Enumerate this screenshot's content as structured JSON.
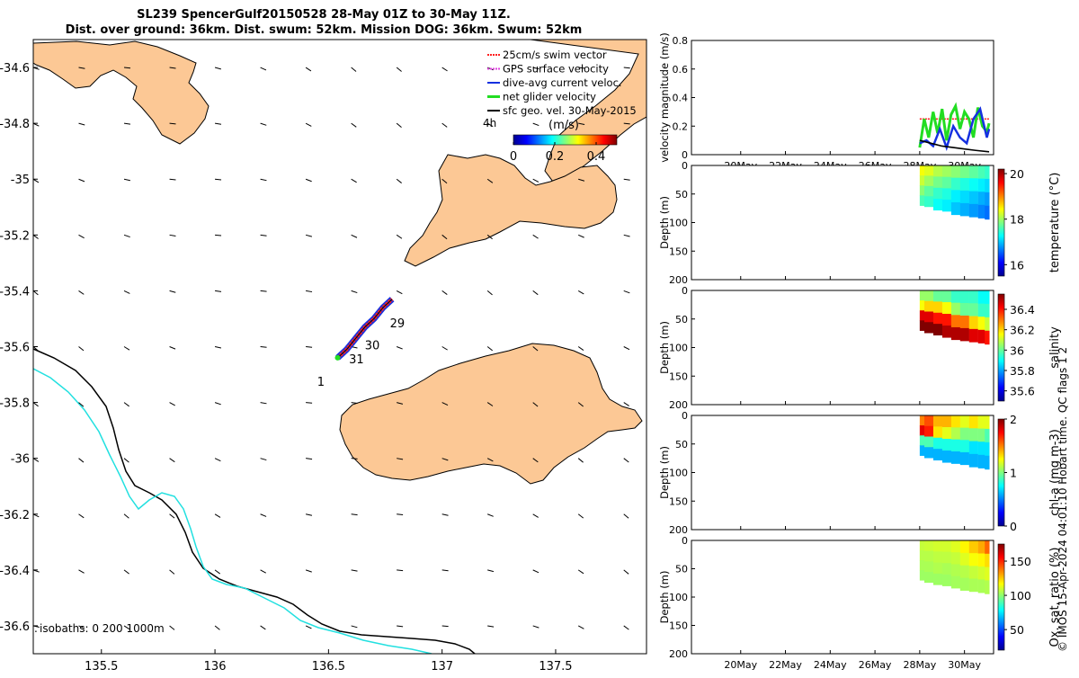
{
  "title_line1": "SL239 SpencerGulf20150528 28-May 01Z to 30-May 11Z.",
  "title_line2": "Dist. over ground: 36km. Dist. swum: 52km. Mission DOG: 36km. Swum: 52km",
  "credit": "© IMOS 15-Apr-2024 04:01:10 Hobart time. QC flags 1  2",
  "colors": {
    "land": "#fcc895",
    "isobath200": "#000000",
    "isobath1000": "#22e0e0",
    "swim": "#ff2020",
    "gps": "#e040e0",
    "dive": "#1530e0",
    "net": "#22dd22",
    "sfc": "#000000"
  },
  "chart_data": [
    {
      "type": "map",
      "xlim": [
        135.2,
        137.9
      ],
      "ylim": [
        -36.7,
        -34.5
      ],
      "xticks": [
        "135.5",
        "136",
        "136.5",
        "137",
        "137.5"
      ],
      "xtick_values": [
        135.5,
        136,
        136.5,
        137,
        137.5
      ],
      "yticks": [
        "-34.6",
        "-34.8",
        "-35",
        "-35.2",
        "-35.4",
        "-35.6",
        "-35.8",
        "-36",
        "-36.2",
        "-36.4",
        "-36.6"
      ],
      "ytick_values": [
        -34.6,
        -34.8,
        -35,
        -35.2,
        -35.4,
        -35.6,
        -35.8,
        -36,
        -36.2,
        -36.4,
        -36.6
      ],
      "legend": [
        {
          "label": "25cm/s swim vector",
          "key": "swim"
        },
        {
          "label": "GPS surface velocity",
          "key": "gps"
        },
        {
          "label": "dive-avg current veloc.",
          "key": "dive"
        },
        {
          "label": "net glider velocity",
          "key": "net"
        },
        {
          "label": "sfc geo. vel. 30-May-2015",
          "key": "sfc"
        }
      ],
      "legend_position": "top-right",
      "colorbar": {
        "label": "(m/s)",
        "corner_label": "4h",
        "ticks": [
          "0",
          "0.2",
          "0.4"
        ],
        "tick_values": [
          0,
          0.2,
          0.4
        ],
        "range": [
          0,
          0.5
        ]
      },
      "isobath_label": "isobaths: 0   200  1000m",
      "track_labels": [
        {
          "text": "29",
          "lon": 136.77,
          "lat": -35.53
        },
        {
          "text": "30",
          "lon": 136.66,
          "lat": -35.61
        },
        {
          "text": "31",
          "lon": 136.59,
          "lat": -35.66
        },
        {
          "text": "1",
          "lon": 136.45,
          "lat": -35.74
        }
      ],
      "track": [
        [
          136.54,
          -35.64
        ],
        [
          136.58,
          -35.61
        ],
        [
          136.62,
          -35.57
        ],
        [
          136.66,
          -35.53
        ],
        [
          136.7,
          -35.5
        ],
        [
          136.74,
          -35.46
        ],
        [
          136.78,
          -35.43
        ]
      ]
    },
    {
      "type": "line",
      "ylabel": "velocity magnitude (m/s)",
      "ylim": [
        0,
        0.8
      ],
      "yticks": [
        "0",
        "0.2",
        "0.4",
        "0.6",
        "0.8"
      ],
      "ytick_values": [
        0,
        0.2,
        0.4,
        0.6,
        0.8
      ],
      "xlim": [
        17.8,
        31.3
      ],
      "xticks": [
        "20May",
        "22May",
        "24May",
        "26May",
        "28May",
        "30May"
      ],
      "xtick_values": [
        20,
        22,
        24,
        26,
        28,
        30
      ],
      "series": [
        {
          "color": "swim",
          "x": [
            28.0,
            28.4,
            28.8,
            29.2,
            29.6,
            30.0,
            30.4,
            30.8,
            31.1
          ],
          "y": [
            0.25,
            0.25,
            0.25,
            0.25,
            0.25,
            0.25,
            0.25,
            0.25,
            0.25
          ]
        },
        {
          "color": "net",
          "x": [
            28.0,
            28.2,
            28.4,
            28.6,
            28.8,
            29.0,
            29.2,
            29.4,
            29.6,
            29.8,
            30.0,
            30.2,
            30.4,
            30.6,
            30.8,
            31.0,
            31.1
          ],
          "y": [
            0.05,
            0.25,
            0.12,
            0.3,
            0.15,
            0.32,
            0.1,
            0.28,
            0.34,
            0.18,
            0.3,
            0.25,
            0.12,
            0.33,
            0.2,
            0.16,
            0.22
          ]
        },
        {
          "color": "dive",
          "x": [
            28.0,
            28.3,
            28.6,
            28.9,
            29.2,
            29.5,
            29.8,
            30.1,
            30.4,
            30.7,
            31.0,
            31.1
          ],
          "y": [
            0.08,
            0.1,
            0.06,
            0.18,
            0.05,
            0.2,
            0.12,
            0.08,
            0.25,
            0.32,
            0.12,
            0.18
          ]
        },
        {
          "color": "sfc",
          "x": [
            28.0,
            28.5,
            29.0,
            29.5,
            30.0,
            30.5,
            31.1
          ],
          "y": [
            0.1,
            0.08,
            0.06,
            0.05,
            0.04,
            0.03,
            0.02
          ]
        }
      ]
    },
    {
      "type": "heatmap",
      "ylabel": "Depth (m)",
      "cblabel": "temperature (°C)",
      "ylim": [
        0,
        200
      ],
      "yticks": [
        "0",
        "50",
        "100",
        "150",
        "200"
      ],
      "ytick_values": [
        0,
        50,
        100,
        150,
        200
      ],
      "clim": [
        15.5,
        20.2
      ],
      "cbticks": [
        "16",
        "18",
        "20"
      ],
      "cbtick_values": [
        16,
        18,
        20
      ],
      "xlim": [
        17.8,
        31.3
      ],
      "x": [
        28.0,
        28.4,
        28.8,
        29.2,
        29.6,
        30.0,
        30.4,
        30.8,
        31.1
      ],
      "max_depth": [
        70,
        72,
        78,
        80,
        86,
        88,
        90,
        92,
        94
      ],
      "values": [
        [
          18.4,
          18.2,
          17.9,
          17.6
        ],
        [
          18.3,
          18.0,
          17.7,
          17.5
        ],
        [
          18.1,
          17.8,
          17.5,
          17.3
        ],
        [
          18.0,
          17.7,
          17.4,
          17.2
        ],
        [
          17.9,
          17.5,
          17.2,
          17.0
        ],
        [
          17.8,
          17.4,
          17.1,
          16.9
        ],
        [
          17.7,
          17.3,
          17.0,
          16.8
        ],
        [
          17.6,
          17.2,
          16.9,
          16.7
        ],
        [
          17.5,
          17.1,
          16.8,
          16.6
        ]
      ]
    },
    {
      "type": "heatmap",
      "ylabel": "Depth (m)",
      "cblabel": "salinity",
      "ylim": [
        0,
        200
      ],
      "yticks": [
        "0",
        "50",
        "100",
        "150",
        "200"
      ],
      "ytick_values": [
        0,
        50,
        100,
        150,
        200
      ],
      "clim": [
        35.5,
        36.55
      ],
      "cbticks": [
        "35.6",
        "35.8",
        "36",
        "36.2",
        "36.4"
      ],
      "cbtick_values": [
        35.6,
        35.8,
        36,
        36.2,
        36.4
      ],
      "xlim": [
        17.8,
        31.3
      ],
      "x": [
        28.0,
        28.4,
        28.8,
        29.2,
        29.6,
        30.0,
        30.4,
        30.8,
        31.1
      ],
      "max_depth": [
        70,
        74,
        78,
        82,
        86,
        88,
        90,
        92,
        94
      ],
      "values": [
        [
          36.05,
          36.15,
          36.45,
          36.55
        ],
        [
          36.05,
          36.2,
          36.45,
          36.55
        ],
        [
          36.0,
          36.2,
          36.4,
          36.55
        ],
        [
          36.0,
          36.15,
          36.4,
          36.5
        ],
        [
          35.95,
          36.05,
          36.3,
          36.5
        ],
        [
          35.95,
          36.0,
          36.3,
          36.5
        ],
        [
          35.95,
          36.0,
          36.2,
          36.45
        ],
        [
          35.9,
          35.95,
          36.15,
          36.45
        ],
        [
          35.9,
          35.95,
          36.1,
          36.4
        ]
      ]
    },
    {
      "type": "heatmap",
      "ylabel": "Depth (m)",
      "cblabel": "chl-a (mg m-3)",
      "ylim": [
        0,
        200
      ],
      "yticks": [
        "0",
        "50",
        "100",
        "150",
        "200"
      ],
      "ytick_values": [
        0,
        50,
        100,
        150,
        200
      ],
      "clim": [
        0,
        2
      ],
      "cbticks": [
        "0",
        "1",
        "2"
      ],
      "cbtick_values": [
        0,
        1,
        2
      ],
      "xlim": [
        17.8,
        31.3
      ],
      "x": [
        28.0,
        28.4,
        28.8,
        29.2,
        29.6,
        30.0,
        30.4,
        30.8,
        31.1
      ],
      "max_depth": [
        70,
        74,
        78,
        82,
        84,
        86,
        90,
        92,
        94
      ],
      "values": [
        [
          1.5,
          1.8,
          0.9,
          0.6
        ],
        [
          1.6,
          1.7,
          0.9,
          0.6
        ],
        [
          1.4,
          1.3,
          0.8,
          0.6
        ],
        [
          1.4,
          1.2,
          0.8,
          0.6
        ],
        [
          1.3,
          1.1,
          0.8,
          0.6
        ],
        [
          1.2,
          1.0,
          0.8,
          0.6
        ],
        [
          1.3,
          1.0,
          0.7,
          0.6
        ],
        [
          1.2,
          1.0,
          0.7,
          0.6
        ],
        [
          1.2,
          0.9,
          0.7,
          0.6
        ]
      ]
    },
    {
      "type": "heatmap",
      "ylabel": "Depth (m)",
      "cblabel": "Ox. sat. ratio (%)",
      "ylim": [
        0,
        200
      ],
      "yticks": [
        "0",
        "50",
        "100",
        "150",
        "200"
      ],
      "ytick_values": [
        0,
        50,
        100,
        150,
        200
      ],
      "clim": [
        20,
        175
      ],
      "cbticks": [
        "50",
        "100",
        "150"
      ],
      "cbtick_values": [
        50,
        100,
        150
      ],
      "xlim": [
        17.8,
        31.3
      ],
      "x": [
        28.0,
        28.4,
        28.8,
        29.2,
        29.6,
        30.0,
        30.4,
        30.8,
        31.1
      ],
      "max_depth": [
        70,
        74,
        78,
        80,
        84,
        88,
        90,
        92,
        94
      ],
      "values": [
        [
          108,
          106,
          104,
          102
        ],
        [
          109,
          106,
          104,
          102
        ],
        [
          110,
          107,
          105,
          102
        ],
        [
          110,
          107,
          104,
          102
        ],
        [
          112,
          108,
          105,
          103
        ],
        [
          118,
          112,
          106,
          103
        ],
        [
          125,
          116,
          108,
          104
        ],
        [
          130,
          118,
          110,
          104
        ],
        [
          140,
          122,
          112,
          105
        ]
      ],
      "xticks": [
        "20May",
        "22May",
        "24May",
        "26May",
        "28May",
        "30May"
      ],
      "xtick_values": [
        20,
        22,
        24,
        26,
        28,
        30
      ]
    }
  ]
}
